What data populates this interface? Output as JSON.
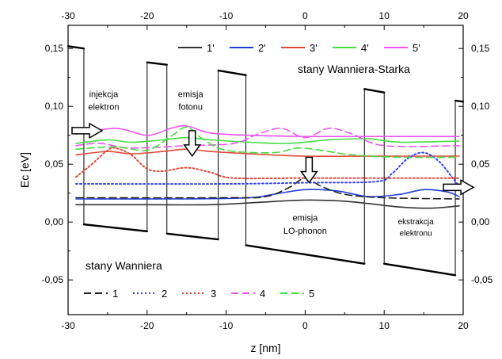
{
  "chart_data": {
    "type": "line",
    "xlabel": "z [nm]",
    "ylabel": "Ec [eV]",
    "xlim": [
      -30,
      20
    ],
    "ylim": [
      -0.08,
      0.17
    ],
    "x_ticks": [
      -30,
      -20,
      -10,
      0,
      10,
      20
    ],
    "x_tick_labels": [
      "-30",
      "-20",
      "-10",
      "0",
      "10",
      "20"
    ],
    "y_ticks": [
      -0.05,
      0.0,
      0.05,
      0.1,
      0.15
    ],
    "y_tick_labels": [
      "-0,05",
      "0,00",
      "0,05",
      "0,10",
      "0,15"
    ],
    "grid": false,
    "conduction_band": [
      [
        -30,
        0.152
      ],
      [
        -28,
        0.15
      ],
      [
        -28,
        -0.002
      ],
      [
        -20,
        -0.008
      ],
      [
        -20,
        0.138
      ],
      [
        -17.5,
        0.136
      ],
      [
        -17.5,
        -0.01
      ],
      [
        -11,
        -0.015
      ],
      [
        -11,
        0.131
      ],
      [
        -7.5,
        0.127
      ],
      [
        -7.5,
        -0.02
      ],
      [
        7.5,
        -0.036
      ],
      [
        7.5,
        0.115
      ],
      [
        10,
        0.112
      ],
      [
        10,
        -0.036
      ],
      [
        19,
        -0.046
      ],
      [
        19,
        0.105
      ],
      [
        20,
        0.104
      ]
    ],
    "legend_wannier_stark": {
      "title": "stany Wanniera-Starka",
      "position": "top-right",
      "entries": [
        {
          "label": "1'",
          "color": "#333333",
          "style": "solid"
        },
        {
          "label": "2'",
          "color": "#1f3fd8",
          "style": "solid"
        },
        {
          "label": "3'",
          "color": "#e04a3a",
          "style": "solid"
        },
        {
          "label": "4'",
          "color": "#44dd44",
          "style": "solid"
        },
        {
          "label": "5'",
          "color": "#ee55ee",
          "style": "solid"
        }
      ]
    },
    "legend_wannier": {
      "title": "stany Wanniera",
      "position": "bottom-left",
      "entries": [
        {
          "label": "1",
          "color": "#222222",
          "style": "dashed"
        },
        {
          "label": "2",
          "color": "#3344ee",
          "style": "dotted"
        },
        {
          "label": "3",
          "color": "#e04a3a",
          "style": "dotted"
        },
        {
          "label": "4",
          "color": "#ee55ee",
          "style": "dashed"
        },
        {
          "label": "5",
          "color": "#44dd44",
          "style": "dashed"
        }
      ]
    },
    "series": [
      {
        "name": "1'",
        "color": "#333333",
        "style": "solid",
        "points": [
          [
            -29,
            0.015
          ],
          [
            -20,
            0.015
          ],
          [
            -12,
            0.015
          ],
          [
            -6,
            0.017
          ],
          [
            0,
            0.019
          ],
          [
            5,
            0.018
          ],
          [
            8,
            0.016
          ],
          [
            12,
            0.013
          ],
          [
            16,
            0.012
          ],
          [
            19.5,
            0.014
          ]
        ]
      },
      {
        "name": "2'",
        "color": "#1f3fd8",
        "style": "solid",
        "points": [
          [
            -29,
            0.02
          ],
          [
            -15,
            0.02
          ],
          [
            -7,
            0.021
          ],
          [
            -4,
            0.024
          ],
          [
            0,
            0.028
          ],
          [
            4,
            0.027
          ],
          [
            8,
            0.022
          ],
          [
            12,
            0.024
          ],
          [
            15,
            0.028
          ],
          [
            18,
            0.026
          ],
          [
            19.5,
            0.022
          ]
        ]
      },
      {
        "name": "3'",
        "color": "#e04a3a",
        "style": "solid",
        "points": [
          [
            -29,
            0.058
          ],
          [
            -25,
            0.061
          ],
          [
            -22,
            0.059
          ],
          [
            -18,
            0.061
          ],
          [
            -15,
            0.063
          ],
          [
            -12,
            0.061
          ],
          [
            -7,
            0.059
          ],
          [
            0,
            0.057
          ],
          [
            10,
            0.057
          ],
          [
            19.5,
            0.057
          ]
        ]
      },
      {
        "name": "4'",
        "color": "#44dd44",
        "style": "solid",
        "points": [
          [
            -29,
            0.068
          ],
          [
            -25,
            0.071
          ],
          [
            -22,
            0.069
          ],
          [
            -18,
            0.071
          ],
          [
            -15,
            0.073
          ],
          [
            -12,
            0.071
          ],
          [
            -7,
            0.069
          ],
          [
            -2,
            0.068
          ],
          [
            3,
            0.071
          ],
          [
            8,
            0.072
          ],
          [
            12,
            0.069
          ],
          [
            19.5,
            0.07
          ]
        ]
      },
      {
        "name": "5'",
        "color": "#ee55ee",
        "style": "solid",
        "points": [
          [
            -29,
            0.076
          ],
          [
            -24,
            0.081
          ],
          [
            -20,
            0.075
          ],
          [
            -17,
            0.081
          ],
          [
            -15,
            0.083
          ],
          [
            -12,
            0.077
          ],
          [
            -7,
            0.075
          ],
          [
            0,
            0.074
          ],
          [
            10,
            0.074
          ],
          [
            19.5,
            0.074
          ]
        ]
      },
      {
        "name": "1",
        "color": "#222222",
        "style": "dashed",
        "points": [
          [
            -29,
            0.021
          ],
          [
            -10,
            0.021
          ],
          [
            -5,
            0.022
          ],
          [
            -2,
            0.03
          ],
          [
            0,
            0.038
          ],
          [
            2,
            0.031
          ],
          [
            5,
            0.024
          ],
          [
            10,
            0.021
          ],
          [
            19.5,
            0.02
          ]
        ]
      },
      {
        "name": "2",
        "color": "#3344ee",
        "style": "dotted",
        "points": [
          [
            -29,
            0.033
          ],
          [
            -10,
            0.033
          ],
          [
            0,
            0.034
          ],
          [
            9,
            0.035
          ],
          [
            11,
            0.042
          ],
          [
            13,
            0.055
          ],
          [
            15,
            0.06
          ],
          [
            17,
            0.052
          ],
          [
            19,
            0.035
          ],
          [
            19.5,
            0.032
          ]
        ]
      },
      {
        "name": "3",
        "color": "#e04a3a",
        "style": "dotted",
        "points": [
          [
            -29,
            0.039
          ],
          [
            -27,
            0.05
          ],
          [
            -25,
            0.062
          ],
          [
            -24,
            0.064
          ],
          [
            -22,
            0.058
          ],
          [
            -20,
            0.046
          ],
          [
            -18,
            0.044
          ],
          [
            -15,
            0.047
          ],
          [
            -12,
            0.043
          ],
          [
            -9,
            0.038
          ],
          [
            0,
            0.038
          ],
          [
            19.5,
            0.038
          ]
        ]
      },
      {
        "name": "4",
        "color": "#ee55ee",
        "style": "dashed",
        "points": [
          [
            -29,
            0.066
          ],
          [
            -26,
            0.068
          ],
          [
            -22,
            0.064
          ],
          [
            -15,
            0.066
          ],
          [
            -9,
            0.068
          ],
          [
            -6,
            0.076
          ],
          [
            -3,
            0.081
          ],
          [
            0,
            0.073
          ],
          [
            3,
            0.081
          ],
          [
            6,
            0.076
          ],
          [
            10,
            0.066
          ],
          [
            19.5,
            0.066
          ]
        ]
      },
      {
        "name": "5",
        "color": "#44dd44",
        "style": "dashed",
        "points": [
          [
            -29,
            0.063
          ],
          [
            -24,
            0.065
          ],
          [
            -20,
            0.062
          ],
          [
            -17,
            0.074
          ],
          [
            -15,
            0.082
          ],
          [
            -13,
            0.072
          ],
          [
            -10,
            0.062
          ],
          [
            -4,
            0.06
          ],
          [
            -1,
            0.064
          ],
          [
            2,
            0.062
          ],
          [
            6,
            0.058
          ],
          [
            12,
            0.056
          ],
          [
            19.5,
            0.056
          ]
        ]
      }
    ],
    "annotations": [
      {
        "text": "injekcja",
        "x": -25.5,
        "y": 0.108,
        "size": "small"
      },
      {
        "text": "elektron",
        "x": -25.5,
        "y": 0.097,
        "size": "small"
      },
      {
        "text": "emisja",
        "x": -14.5,
        "y": 0.108,
        "size": "small"
      },
      {
        "text": "fotonu",
        "x": -14.5,
        "y": 0.097,
        "size": "small"
      },
      {
        "text": "emisja",
        "x": 0,
        "y": 0.001,
        "size": "small"
      },
      {
        "text": "LO-phonon",
        "x": 0,
        "y": -0.01,
        "size": "small"
      },
      {
        "text": "ekstrakcja",
        "x": 14,
        "y": -0.002,
        "size": "tiny"
      },
      {
        "text": "elektronu",
        "x": 14,
        "y": -0.012,
        "size": "tiny"
      }
    ],
    "arrows": [
      {
        "type": "horizontal",
        "x": -29.5,
        "y": 0.079,
        "direction": "right"
      },
      {
        "type": "down",
        "x": -14.3,
        "y": 0.079
      },
      {
        "type": "down",
        "x": 0.5,
        "y": 0.056
      },
      {
        "type": "horizontal",
        "x": 17.5,
        "y": 0.03,
        "direction": "right"
      }
    ]
  }
}
